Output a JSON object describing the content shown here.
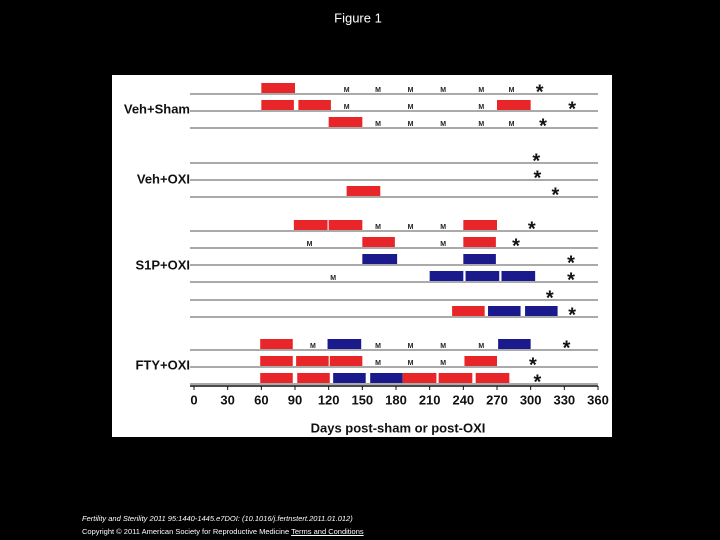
{
  "slide_title": "Figure 1",
  "chart_data": {
    "type": "timeline",
    "x_label": "Days post-sham or post-OXI",
    "xlim": [
      0,
      360
    ],
    "xticks": [
      0,
      30,
      60,
      90,
      120,
      150,
      180,
      210,
      240,
      270,
      300,
      330,
      360
    ],
    "marker_label": "M",
    "end_label": "*",
    "groups": [
      {
        "label": "Veh+Sham",
        "rows": [
          {
            "bars": [
              {
                "x": [
                  60,
                  90
                ],
                "color": "#e8262a"
              }
            ],
            "markers": [
              136,
              164,
              193,
              222,
              256,
              283
            ],
            "end": 308
          },
          {
            "bars": [
              {
                "x": [
                  60,
                  89
                ],
                "color": "#e8262a"
              },
              {
                "x": [
                  93,
                  122
                ],
                "color": "#e8262a"
              },
              {
                "x": [
                  270,
                  300
                ],
                "color": "#e8262a"
              }
            ],
            "markers": [
              136,
              193,
              256
            ],
            "end": 337
          },
          {
            "bars": [
              {
                "x": [
                  120,
                  150
                ],
                "color": "#e8262a"
              }
            ],
            "markers": [
              164,
              193,
              222,
              256,
              283
            ],
            "end": 311
          }
        ]
      },
      {
        "label": "Veh+OXI",
        "rows": [
          {
            "bars": [],
            "markers": [],
            "end": 305
          },
          {
            "bars": [],
            "markers": [],
            "end": 306
          },
          {
            "bars": [
              {
                "x": [
                  136,
                  166
                ],
                "color": "#e8262a"
              }
            ],
            "markers": [],
            "end": 322
          }
        ]
      },
      {
        "label": "S1P+OXI",
        "rows": [
          {
            "bars": [
              {
                "x": [
                  89,
                  119
                ],
                "color": "#e8262a"
              },
              {
                "x": [
                  120,
                  150
                ],
                "color": "#e8262a"
              },
              {
                "x": [
                  240,
                  270
                ],
                "color": "#e8262a"
              }
            ],
            "markers": [
              164,
              193,
              222
            ],
            "end": 301
          },
          {
            "bars": [
              {
                "x": [
                  150,
                  179
                ],
                "color": "#e8262a"
              },
              {
                "x": [
                  240,
                  269
                ],
                "color": "#e8262a"
              }
            ],
            "markers": [
              103,
              222
            ],
            "end": 287
          },
          {
            "bars": [
              {
                "x": [
                  150,
                  181
                ],
                "color": "#1a1a8c"
              },
              {
                "x": [
                  240,
                  269
                ],
                "color": "#1a1a8c"
              }
            ],
            "markers": [],
            "end": 336
          },
          {
            "bars": [
              {
                "x": [
                  210,
                  240
                ],
                "color": "#1a1a8c"
              },
              {
                "x": [
                  242,
                  272
                ],
                "color": "#1a1a8c"
              },
              {
                "x": [
                  274,
                  304
                ],
                "color": "#1a1a8c"
              }
            ],
            "markers": [
              124
            ],
            "end": 336
          },
          {
            "bars": [],
            "markers": [],
            "end": 317
          },
          {
            "bars": [
              {
                "x": [
                  230,
                  259
                ],
                "color": "#e8262a"
              },
              {
                "x": [
                  262,
                  291
                ],
                "color": "#1a1a8c"
              },
              {
                "x": [
                  295,
                  324
                ],
                "color": "#1a1a8c"
              }
            ],
            "markers": [],
            "end": 337
          }
        ]
      },
      {
        "label": "FTY+OXI",
        "rows": [
          {
            "bars": [
              {
                "x": [
                  59,
                  88
                ],
                "color": "#e8262a"
              },
              {
                "x": [
                  119,
                  149
                ],
                "color": "#1a1a8c"
              },
              {
                "x": [
                  271,
                  300
                ],
                "color": "#1a1a8c"
              }
            ],
            "markers": [
              106,
              164,
              193,
              222,
              256
            ],
            "end": 332
          },
          {
            "bars": [
              {
                "x": [
                  59,
                  88
                ],
                "color": "#e8262a"
              },
              {
                "x": [
                  91,
                  120
                ],
                "color": "#e8262a"
              },
              {
                "x": [
                  121,
                  150
                ],
                "color": "#e8262a"
              },
              {
                "x": [
                  241,
                  270
                ],
                "color": "#e8262a"
              }
            ],
            "markers": [
              164,
              193,
              222
            ],
            "end": 302
          },
          {
            "bars": [
              {
                "x": [
                  59,
                  88
                ],
                "color": "#e8262a"
              },
              {
                "x": [
                  92,
                  121
                ],
                "color": "#e8262a"
              },
              {
                "x": [
                  124,
                  153
                ],
                "color": "#1a1a8c"
              },
              {
                "x": [
                  157,
                  186
                ],
                "color": "#1a1a8c"
              },
              {
                "x": [
                  186,
                  216
                ],
                "color": "#e8262a"
              },
              {
                "x": [
                  218,
                  248
                ],
                "color": "#e8262a"
              },
              {
                "x": [
                  251,
                  281
                ],
                "color": "#e8262a"
              }
            ],
            "markers": [],
            "end": 306
          }
        ]
      }
    ]
  },
  "footer": {
    "citation": "Fertility and Sterility 2011 95:1440-1445.e7DOI: (10.1016/j.fertnstert.2011.01.012)",
    "copyright": "Copyright © 2011 American Society for Reproductive Medicine",
    "link": "Terms and Conditions"
  }
}
